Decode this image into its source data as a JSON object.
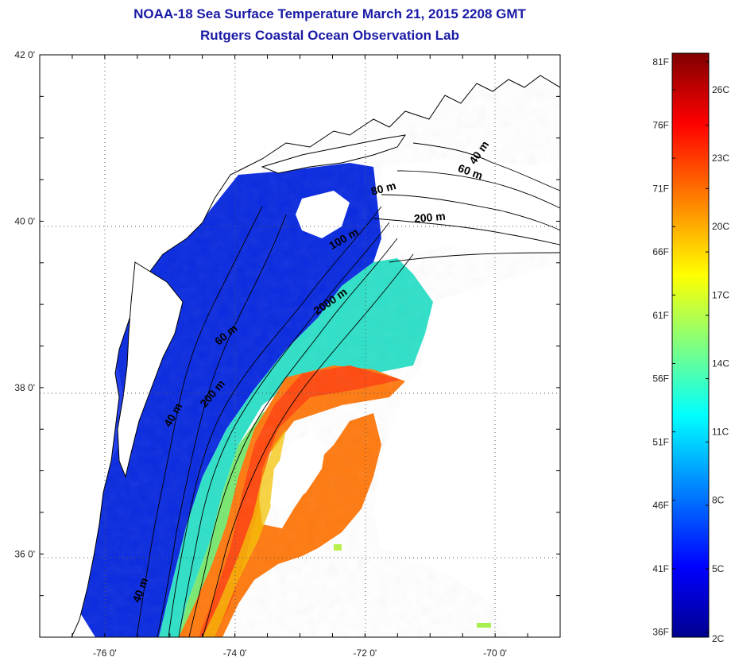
{
  "title_line1": "NOAA-18 Sea Surface Temperature March 21, 2015 2208 GMT",
  "title_line2": "Rutgers Coastal Ocean Observation Lab",
  "map": {
    "lon_range": [
      -77,
      -69
    ],
    "lat_range": [
      35,
      42
    ],
    "lon_ticks": [
      {
        "value": -76,
        "label": "-76 0'"
      },
      {
        "value": -74,
        "label": "-74 0'"
      },
      {
        "value": -72,
        "label": "-72 0'"
      },
      {
        "value": -70,
        "label": "-70 0'"
      }
    ],
    "lat_ticks": [
      {
        "value": 42,
        "label": "42 0'"
      },
      {
        "value": 40,
        "label": "40 0'"
      },
      {
        "value": 38,
        "label": "38 0'"
      },
      {
        "value": 36,
        "label": "36 0'"
      }
    ],
    "contour_labels": [
      {
        "text": "40 m",
        "lon": -70.2,
        "lat": 40.8,
        "angle": -55
      },
      {
        "text": "60 m",
        "lon": -70.4,
        "lat": 40.55,
        "angle": 20
      },
      {
        "text": "80 m",
        "lon": -71.7,
        "lat": 40.35,
        "angle": -15
      },
      {
        "text": "200 m",
        "lon": -71.0,
        "lat": 40.0,
        "angle": -5
      },
      {
        "text": "100 m",
        "lon": -72.3,
        "lat": 39.75,
        "angle": -30
      },
      {
        "text": "2000 m",
        "lon": -72.5,
        "lat": 39.0,
        "angle": -35
      },
      {
        "text": "60 m",
        "lon": -74.1,
        "lat": 38.6,
        "angle": -40
      },
      {
        "text": "200 m",
        "lon": -74.3,
        "lat": 37.9,
        "angle": -50
      },
      {
        "text": "40 m",
        "lon": -74.9,
        "lat": 37.65,
        "angle": -60
      },
      {
        "text": "40 m",
        "lon": -75.4,
        "lat": 35.55,
        "angle": -70
      }
    ]
  },
  "colorbar": {
    "range_c": [
      2,
      27.6
    ],
    "fahrenheit_labels": [
      "81F",
      "76F",
      "71F",
      "66F",
      "61F",
      "56F",
      "51F",
      "46F",
      "41F",
      "36F"
    ],
    "celsius_labels": [
      "26C",
      "23C",
      "20C",
      "17C",
      "14C",
      "11C",
      "8C",
      "5C",
      "2C"
    ],
    "colors": [
      "#00008f",
      "#0000ff",
      "#00ffff",
      "#ffff00",
      "#ff0000",
      "#800000"
    ]
  }
}
